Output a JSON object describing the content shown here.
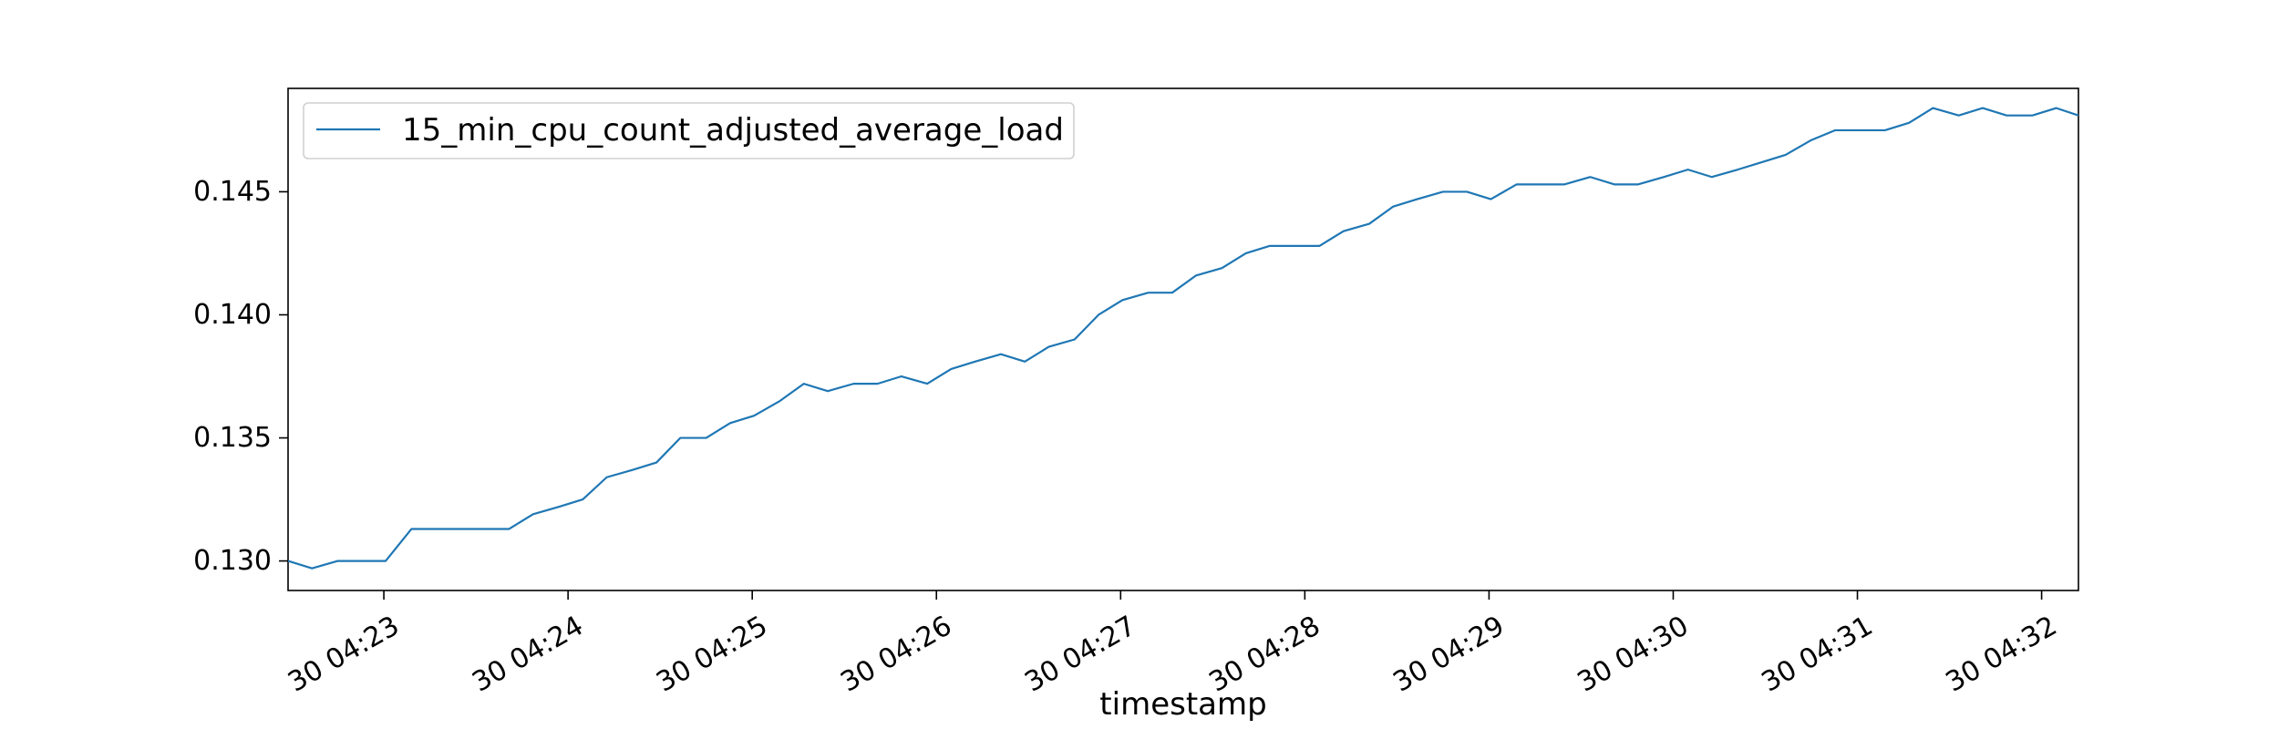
{
  "chart_data": {
    "type": "line",
    "title": "",
    "xlabel": "timestamp",
    "ylabel": "",
    "grid": false,
    "legend_position": "top-left",
    "line_color": "#1f77b4",
    "x_ticks": [
      {
        "minute": 23,
        "label": "30 04:23"
      },
      {
        "minute": 24,
        "label": "30 04:24"
      },
      {
        "minute": 25,
        "label": "30 04:25"
      },
      {
        "minute": 26,
        "label": "30 04:26"
      },
      {
        "minute": 27,
        "label": "30 04:27"
      },
      {
        "minute": 28,
        "label": "30 04:28"
      },
      {
        "minute": 29,
        "label": "30 04:29"
      },
      {
        "minute": 30,
        "label": "30 04:30"
      },
      {
        "minute": 31,
        "label": "30 04:31"
      },
      {
        "minute": 32,
        "label": "30 04:32"
      }
    ],
    "y_ticks": [
      {
        "value": 0.13,
        "label": "0.130"
      },
      {
        "value": 0.135,
        "label": "0.135"
      },
      {
        "value": 0.14,
        "label": "0.140"
      },
      {
        "value": 0.145,
        "label": "0.145"
      }
    ],
    "xlim": [
      22.48,
      32.2
    ],
    "ylim": [
      0.1288,
      0.1492
    ],
    "series": [
      {
        "name": "15_min_cpu_count_adjusted_average_load",
        "x": [
          22.48,
          22.61,
          22.75,
          22.88,
          23.01,
          23.15,
          23.28,
          23.41,
          23.55,
          23.68,
          23.81,
          23.95,
          24.08,
          24.21,
          24.35,
          24.48,
          24.61,
          24.75,
          24.88,
          25.01,
          25.15,
          25.28,
          25.41,
          25.55,
          25.68,
          25.81,
          25.95,
          26.08,
          26.21,
          26.35,
          26.48,
          26.61,
          26.75,
          26.88,
          27.01,
          27.15,
          27.28,
          27.41,
          27.55,
          27.68,
          27.81,
          27.95,
          28.08,
          28.21,
          28.35,
          28.48,
          28.61,
          28.75,
          28.88,
          29.01,
          29.15,
          29.28,
          29.41,
          29.55,
          29.68,
          29.81,
          29.95,
          30.08,
          30.21,
          30.35,
          30.48,
          30.61,
          30.75,
          30.88,
          31.01,
          31.15,
          31.28,
          31.41,
          31.55,
          31.68,
          31.81,
          31.95,
          32.08,
          32.2
        ],
        "y": [
          0.13,
          0.1297,
          0.13,
          0.13,
          0.13,
          0.1313,
          0.1313,
          0.1313,
          0.1313,
          0.1313,
          0.1319,
          0.1322,
          0.1325,
          0.1334,
          0.1337,
          0.134,
          0.135,
          0.135,
          0.1356,
          0.1359,
          0.1365,
          0.1372,
          0.1369,
          0.1372,
          0.1372,
          0.1375,
          0.1372,
          0.1378,
          0.1381,
          0.1384,
          0.1381,
          0.1387,
          0.139,
          0.14,
          0.1406,
          0.1409,
          0.1409,
          0.1416,
          0.1419,
          0.1425,
          0.1428,
          0.1428,
          0.1428,
          0.1434,
          0.1437,
          0.1444,
          0.1447,
          0.145,
          0.145,
          0.1447,
          0.1453,
          0.1453,
          0.1453,
          0.1456,
          0.1453,
          0.1453,
          0.1456,
          0.1459,
          0.1456,
          0.1459,
          0.1462,
          0.1465,
          0.1471,
          0.1475,
          0.1475,
          0.1475,
          0.1478,
          0.1484,
          0.1481,
          0.1484,
          0.1481,
          0.1481,
          0.1484,
          0.1481
        ]
      }
    ]
  }
}
